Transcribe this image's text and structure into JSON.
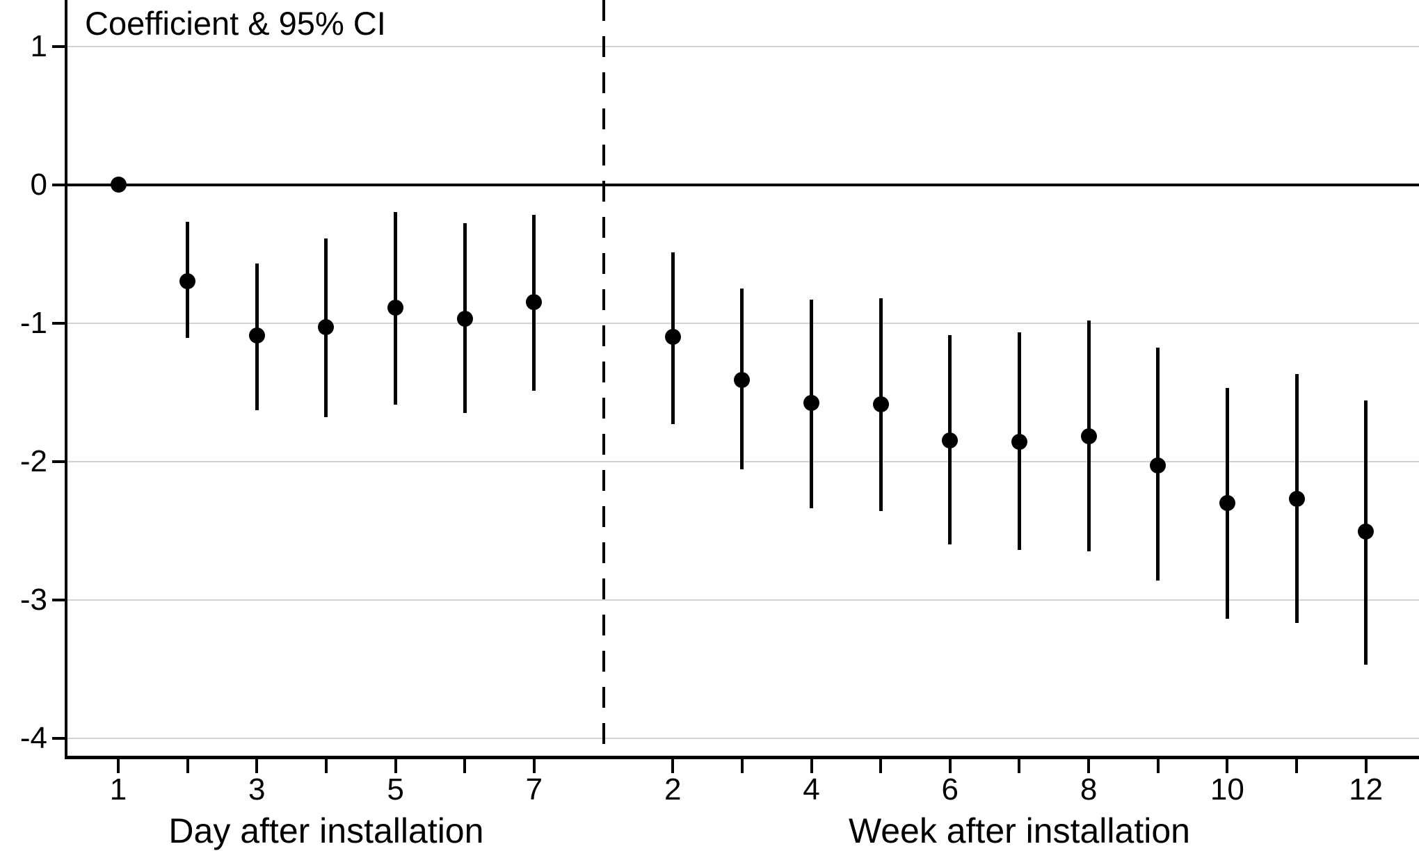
{
  "title_label": "Coefficient & 95% CI",
  "colors": {
    "foreground": "#000000",
    "gridline": "#d2d2d2",
    "background": "#ffffff"
  },
  "y_axis": {
    "tick_labels": [
      "1",
      "0",
      "-1",
      "-2",
      "-3",
      "-4"
    ],
    "tick_values": [
      1,
      0,
      -1,
      -2,
      -3,
      -4
    ]
  },
  "x_axis": {
    "day_title": "Day after installation",
    "week_title": "Week after installation",
    "day_labeled_ticks": [
      1,
      3,
      5,
      7
    ],
    "week_labeled_ticks": [
      2,
      4,
      6,
      8,
      10,
      12
    ]
  },
  "chart_data": {
    "type": "scatter",
    "title": "Coefficient & 95% CI",
    "xlabel_left": "Day after installation",
    "xlabel_right": "Week after installation",
    "ylabel": "",
    "ylim": [
      -4.14,
      1.33
    ],
    "grid": true,
    "gridline_values": [
      1,
      -1,
      -2,
      -3,
      -4
    ],
    "reference_line_y": 0,
    "separator": "dashed vertical line between day section and week section",
    "marker": "filled black circle with vertical 95% CI whisker",
    "series": [
      {
        "name": "Day after installation",
        "x": [
          1,
          2,
          3,
          4,
          5,
          6,
          7
        ],
        "coef": [
          0.0,
          -0.7,
          -1.09,
          -1.03,
          -0.89,
          -0.97,
          -0.85
        ],
        "ci_high": [
          null,
          -0.27,
          -0.57,
          -0.39,
          -0.2,
          -0.28,
          -0.22
        ],
        "ci_low": [
          null,
          -1.11,
          -1.63,
          -1.68,
          -1.59,
          -1.65,
          -1.49
        ]
      },
      {
        "name": "Week after installation",
        "x": [
          2,
          3,
          4,
          5,
          6,
          7,
          8,
          9,
          10,
          11,
          12
        ],
        "coef": [
          -1.1,
          -1.41,
          -1.58,
          -1.59,
          -1.85,
          -1.86,
          -1.82,
          -2.03,
          -2.3,
          -2.27,
          -2.51
        ],
        "ci_high": [
          -0.49,
          -0.75,
          -0.83,
          -0.82,
          -1.09,
          -1.07,
          -0.98,
          -1.18,
          -1.47,
          -1.37,
          -1.56
        ],
        "ci_low": [
          -1.73,
          -2.06,
          -2.34,
          -2.36,
          -2.6,
          -2.64,
          -2.65,
          -2.86,
          -3.14,
          -3.17,
          -3.47
        ]
      }
    ]
  }
}
